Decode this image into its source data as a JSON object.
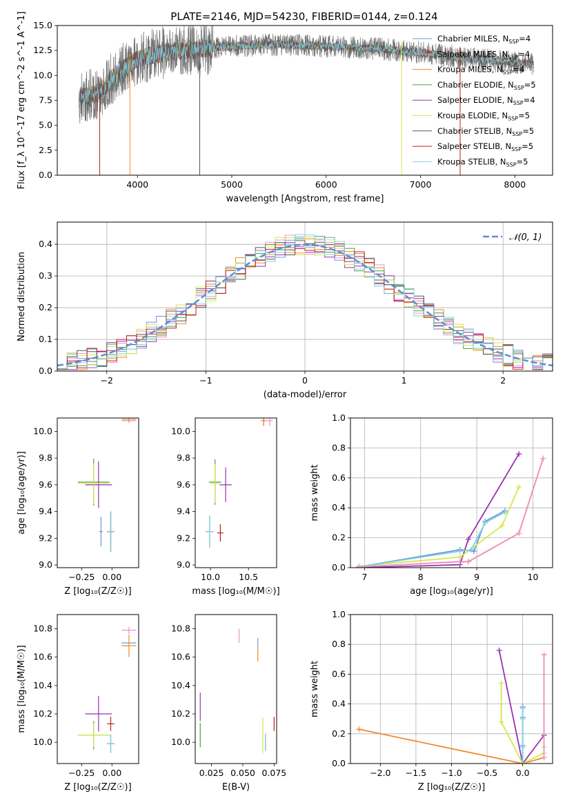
{
  "figure_title": "PLATE=2146, MJD=54230, FIBERID=0144, z=0.124",
  "models": [
    {
      "name": "Chabrier MILES",
      "nssp": "4",
      "color": "#6f95d9"
    },
    {
      "name": "Salpeter MILES",
      "nssp": "4",
      "color": "#ef8fcb"
    },
    {
      "name": "Kroupa MILES",
      "nssp": "4",
      "color": "#ee8a2a"
    },
    {
      "name": "Chabrier ELODIE",
      "nssp": "5",
      "color": "#4c9a3c"
    },
    {
      "name": "Salpeter ELODIE",
      "nssp": "4",
      "color": "#9b2fb0"
    },
    {
      "name": "Kroupa ELODIE",
      "nssp": "5",
      "color": "#d6e649"
    },
    {
      "name": "Chabrier STELIB",
      "nssp": "5",
      "color": "#555555"
    },
    {
      "name": "Salpeter STELIB",
      "nssp": "5",
      "color": "#c01c1c"
    },
    {
      "name": "Kroupa STELIB",
      "nssp": "5",
      "color": "#7fd3e0"
    }
  ],
  "chart_data": [
    {
      "id": "spectrum",
      "type": "line",
      "xlabel": "wavelength [Angstrom, rest frame]",
      "ylabel": "Flux [f_λ 10^-17 erg cm^-2 s^-1 A^-1]",
      "xlim": [
        3150,
        8400
      ],
      "ylim": [
        0,
        15
      ],
      "xticks": [
        4000,
        5000,
        6000,
        7000,
        8000
      ],
      "yticks": [
        0.0,
        2.5,
        5.0,
        7.5,
        10.0,
        12.5,
        15.0
      ],
      "legend": "right",
      "x_range": [
        3380,
        8200
      ],
      "envelope": {
        "x": [
          3380,
          3500,
          3600,
          3700,
          3800,
          3900,
          4000,
          4100,
          4300,
          4500,
          5000,
          5500,
          6000,
          6500,
          7000,
          7500,
          8000,
          8200
        ],
        "y": [
          7.8,
          8.0,
          8.2,
          9.4,
          10.4,
          11.0,
          11.6,
          11.9,
          12.3,
          12.5,
          12.9,
          13.1,
          12.9,
          12.7,
          12.3,
          11.7,
          11.3,
          11.1
        ]
      },
      "noise_amplitude": 1.2,
      "dips": [
        {
          "x": 3600,
          "y": 0.0
        },
        {
          "x": 3920,
          "y": 0.0
        },
        {
          "x": 4660,
          "y": 0.0
        },
        {
          "x": 6800,
          "y": 0.0
        },
        {
          "x": 7420,
          "y": 0.0
        }
      ]
    },
    {
      "id": "residuals",
      "type": "line",
      "xlabel": "(data-model)/error",
      "ylabel": "Normed distribution",
      "xlim": [
        -2.5,
        2.5
      ],
      "ylim": [
        0,
        0.47
      ],
      "xticks": [
        -2,
        -1,
        0,
        1,
        2
      ],
      "yticks": [
        0.0,
        0.1,
        0.2,
        0.3,
        0.4
      ],
      "grid": true,
      "legend": "top-right",
      "reference_label": "𝒩(0, 1)",
      "reference_color": "#5b8dd9",
      "bins": {
        "start": -2.5,
        "width": 0.1,
        "count": 50
      },
      "histogram_scatter": 0.035,
      "histogram_peak": 0.4
    },
    {
      "id": "age_vs_Z",
      "type": "scatter",
      "xlabel": "Z [log₁₀(Z/Z☉)]",
      "ylabel": "age [log₁₀(age/yr)]",
      "xlim": [
        -0.45,
        0.22
      ],
      "ylim": [
        8.98,
        10.1
      ],
      "xticks": [
        -0.25,
        0.0
      ],
      "xtick_labels": [
        "−0.25",
        "0.00"
      ],
      "yticks": [
        9.0,
        9.2,
        9.4,
        9.6,
        9.8,
        10.0
      ],
      "crosses": [
        {
          "model": 0,
          "x": -0.09,
          "y": 9.25,
          "ex": 0.03,
          "ey": 0.22
        },
        {
          "model": 1,
          "x": 0.14,
          "y": 10.08,
          "ex": 0.12,
          "ey": 0.0
        },
        {
          "model": 2,
          "x": 0.14,
          "y": 10.09,
          "ex": 0.12,
          "ey": 0.05
        },
        {
          "model": 3,
          "x": -0.15,
          "y": 9.62,
          "ex": 0.26,
          "ey": 0.35
        },
        {
          "model": 4,
          "x": -0.11,
          "y": 9.6,
          "ex": 0.22,
          "ey": 0.35
        },
        {
          "model": 5,
          "x": -0.15,
          "y": 9.61,
          "ex": 0.26,
          "ey": 0.3
        },
        {
          "model": 6,
          "x": -0.01,
          "y": 9.25,
          "ex": 0.06,
          "ey": 0.3
        },
        {
          "model": 7,
          "x": -0.01,
          "y": 9.25,
          "ex": 0.06,
          "ey": 0.3
        },
        {
          "model": 8,
          "x": -0.01,
          "y": 9.25,
          "ex": 0.06,
          "ey": 0.3
        }
      ]
    },
    {
      "id": "age_vs_mass",
      "type": "scatter",
      "xlabel": "mass [log₁₀(M/M☉)]",
      "ylabel": "",
      "xlim": [
        9.8,
        10.87
      ],
      "ylim": [
        8.98,
        10.1
      ],
      "xticks": [
        10.0,
        10.5
      ],
      "xtick_labels": [
        "10.0",
        "10.5"
      ],
      "yticks": [
        9.0,
        9.2,
        9.4,
        9.6,
        9.8,
        10.0
      ],
      "crosses": [
        {
          "model": 0,
          "x": 10.7,
          "y": 10.08,
          "ex": 0.03,
          "ey": 0.08
        },
        {
          "model": 1,
          "x": 10.78,
          "y": 10.08,
          "ex": 0.08,
          "ey": 0.08
        },
        {
          "model": 2,
          "x": 10.7,
          "y": 10.08,
          "ex": 0.08,
          "ey": 0.08
        },
        {
          "model": 3,
          "x": 10.06,
          "y": 9.62,
          "ex": 0.16,
          "ey": 0.34
        },
        {
          "model": 4,
          "x": 10.2,
          "y": 9.6,
          "ex": 0.16,
          "ey": 0.26
        },
        {
          "model": 5,
          "x": 10.06,
          "y": 9.61,
          "ex": 0.12,
          "ey": 0.29
        },
        {
          "model": 6,
          "x": 9.99,
          "y": 9.25,
          "ex": 0.1,
          "ey": 0.24
        },
        {
          "model": 7,
          "x": 10.13,
          "y": 9.24,
          "ex": 0.08,
          "ey": 0.13
        },
        {
          "model": 8,
          "x": 9.99,
          "y": 9.25,
          "ex": 0.1,
          "ey": 0.24
        }
      ]
    },
    {
      "id": "weight_vs_age",
      "type": "line",
      "xlabel": "age [log₁₀(age/yr)]",
      "ylabel": "mass weight",
      "xlim": [
        6.75,
        10.35
      ],
      "ylim": [
        0,
        1.0
      ],
      "xticks": [
        7,
        8,
        9,
        10
      ],
      "yticks": [
        0.0,
        0.2,
        0.4,
        0.6,
        0.8,
        1.0
      ],
      "grid": true,
      "series": [
        {
          "model": 0,
          "x": [
            6.9,
            8.7,
            8.95,
            9.15,
            9.5
          ],
          "y": [
            0.005,
            0.12,
            0.11,
            0.31,
            0.38
          ]
        },
        {
          "model": 2,
          "x": [
            6.9,
            8.7,
            8.85,
            9.75,
            10.18
          ],
          "y": [
            0.005,
            0.04,
            0.04,
            0.23,
            0.73
          ]
        },
        {
          "model": 4,
          "x": [
            6.9,
            8.7,
            8.85,
            9.75
          ],
          "y": [
            0.0,
            0.02,
            0.19,
            0.76
          ]
        },
        {
          "model": 5,
          "x": [
            6.9,
            8.7,
            9.45,
            9.75
          ],
          "y": [
            0.01,
            0.07,
            0.28,
            0.54
          ]
        },
        {
          "model": 8,
          "x": [
            6.9,
            8.7,
            8.9,
            9.15,
            9.5
          ],
          "y": [
            0.005,
            0.11,
            0.12,
            0.3,
            0.37
          ]
        },
        {
          "model": 1,
          "x": [
            6.9,
            8.7,
            8.85,
            9.75,
            10.18
          ],
          "y": [
            0.005,
            0.04,
            0.04,
            0.23,
            0.73
          ]
        }
      ]
    },
    {
      "id": "mass_vs_Z",
      "type": "scatter",
      "xlabel": "Z [log₁₀(Z/Z☉)]",
      "ylabel": "mass [log₁₀(M/M☉)]",
      "xlim": [
        -0.45,
        0.22
      ],
      "ylim": [
        9.85,
        10.9
      ],
      "xticks": [
        -0.25,
        0.0
      ],
      "xtick_labels": [
        "−0.25",
        "0.00"
      ],
      "yticks": [
        10.0,
        10.2,
        10.4,
        10.6,
        10.8
      ],
      "crosses": [
        {
          "model": 0,
          "x": 0.14,
          "y": 10.7,
          "ex": 0.12,
          "ey": 0.0
        },
        {
          "model": 1,
          "x": 0.14,
          "y": 10.79,
          "ex": 0.12,
          "ey": 0.05
        },
        {
          "model": 2,
          "x": 0.14,
          "y": 10.68,
          "ex": 0.12,
          "ey": 0.16
        },
        {
          "model": 3,
          "x": -0.15,
          "y": 10.05,
          "ex": 0.26,
          "ey": 0.2
        },
        {
          "model": 4,
          "x": -0.11,
          "y": 10.2,
          "ex": 0.22,
          "ey": 0.25
        },
        {
          "model": 5,
          "x": -0.15,
          "y": 10.05,
          "ex": 0.26,
          "ey": 0.17
        },
        {
          "model": 6,
          "x": -0.01,
          "y": 9.99,
          "ex": 0.06,
          "ey": 0.13
        },
        {
          "model": 7,
          "x": -0.01,
          "y": 10.13,
          "ex": 0.06,
          "ey": 0.1
        },
        {
          "model": 8,
          "x": -0.01,
          "y": 9.99,
          "ex": 0.06,
          "ey": 0.13
        }
      ]
    },
    {
      "id": "mass_vs_ebv",
      "type": "scatter",
      "xlabel": "E(B-V)",
      "ylabel": "",
      "xlim": [
        0.012,
        0.077
      ],
      "ylim": [
        9.85,
        10.9
      ],
      "xticks": [
        0.025,
        0.05,
        0.075
      ],
      "xtick_labels": [
        "0.025",
        "0.050",
        "0.075"
      ],
      "yticks": [
        10.0,
        10.2,
        10.4,
        10.6,
        10.8
      ],
      "crosses": [
        {
          "model": 0,
          "x": 0.062,
          "y": 10.7,
          "ex": 0,
          "ey": 0.07
        },
        {
          "model": 1,
          "x": 0.047,
          "y": 10.75,
          "ex": 0,
          "ey": 0.1
        },
        {
          "model": 2,
          "x": 0.062,
          "y": 10.62,
          "ex": 0,
          "ey": 0.1
        },
        {
          "model": 3,
          "x": 0.016,
          "y": 10.05,
          "ex": 0,
          "ey": 0.17
        },
        {
          "model": 4,
          "x": 0.016,
          "y": 10.25,
          "ex": 0,
          "ey": 0.2
        },
        {
          "model": 5,
          "x": 0.066,
          "y": 10.05,
          "ex": 0,
          "ey": 0.25
        },
        {
          "model": 6,
          "x": 0.068,
          "y": 10.0,
          "ex": 0,
          "ey": 0.12
        },
        {
          "model": 7,
          "x": 0.075,
          "y": 10.13,
          "ex": 0,
          "ey": 0.1
        },
        {
          "model": 8,
          "x": 0.068,
          "y": 10.0,
          "ex": 0,
          "ey": 0.12
        }
      ]
    },
    {
      "id": "weight_vs_Z",
      "type": "line",
      "xlabel": "Z [log₁₀(Z/Z☉)]",
      "ylabel": "mass weight",
      "xlim": [
        -2.42,
        0.42
      ],
      "ylim": [
        0,
        1.0
      ],
      "xticks": [
        -2.0,
        -1.5,
        -1.0,
        -0.5,
        0.0
      ],
      "xtick_labels": [
        "−2.0",
        "−1.5",
        "−1.0",
        "−0.5",
        "0.0"
      ],
      "yticks": [
        0.0,
        0.2,
        0.4,
        0.6,
        0.8,
        1.0
      ],
      "grid": true,
      "series": [
        {
          "model": 2,
          "x": [
            -2.3,
            0.0,
            0.3,
            0.3
          ],
          "y": [
            0.23,
            0.0,
            0.04,
            0.73
          ]
        },
        {
          "model": 4,
          "x": [
            -0.33,
            0.0,
            0.3
          ],
          "y": [
            0.76,
            0.0,
            0.19
          ]
        },
        {
          "model": 5,
          "x": [
            -0.3,
            -0.3,
            0.0,
            0.3,
            0.3
          ],
          "y": [
            0.54,
            0.28,
            0.0,
            0.07,
            0.11
          ]
        },
        {
          "model": 0,
          "x": [
            0.0,
            0.0,
            0.0,
            0.0
          ],
          "y": [
            0.38,
            0.12,
            0.31,
            0.0
          ]
        },
        {
          "model": 8,
          "x": [
            0.0,
            0.0,
            0.0,
            0.0
          ],
          "y": [
            0.37,
            0.11,
            0.3,
            0.0
          ]
        },
        {
          "model": 1,
          "x": [
            0.3,
            0.3
          ],
          "y": [
            0.04,
            0.73
          ]
        }
      ]
    }
  ]
}
